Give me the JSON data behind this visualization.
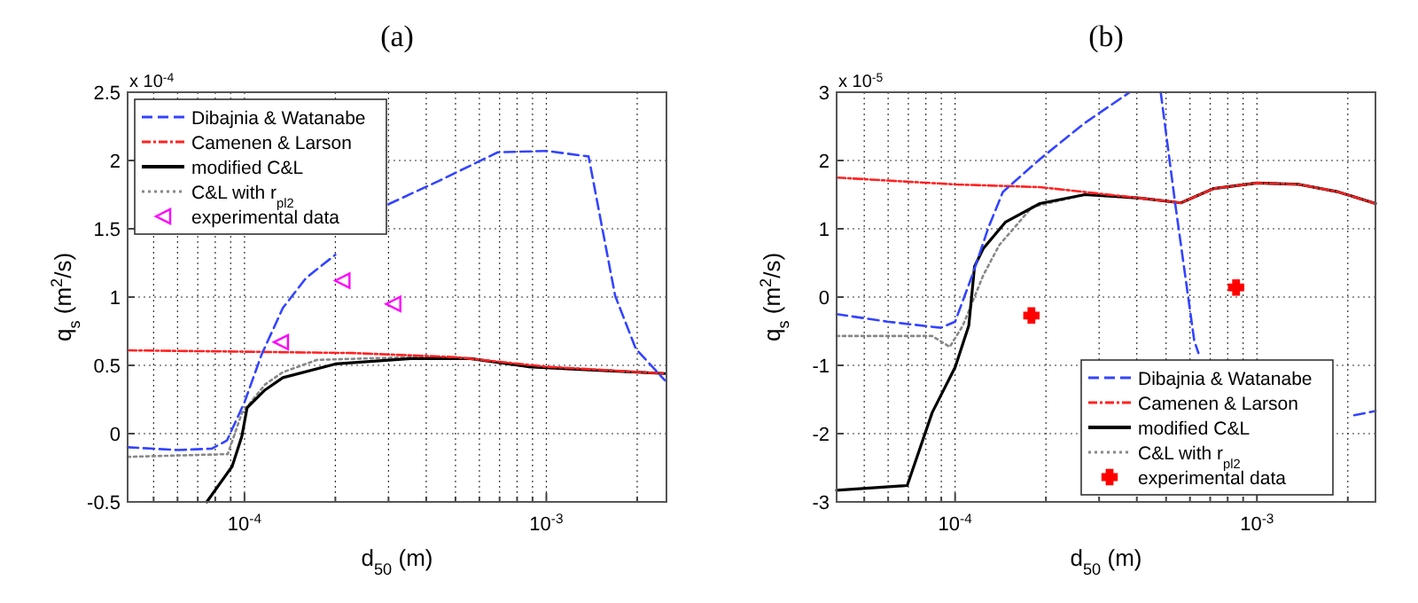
{
  "chart_data": [
    {
      "type": "line",
      "title": "(a)",
      "xlabel": "d$_{50}$ (m)",
      "ylabel": "q$_{s}$ (m$^{2}$/s)",
      "annotations": [
        "x 10$^{-4}$"
      ],
      "log": "x",
      "grid": true,
      "legend": "top left",
      "xlim": [
        4.1e-05,
        0.0025
      ],
      "ylim": [
        -0.5,
        2.5
      ],
      "yticks": [
        -0.5,
        0,
        0.5,
        1,
        1.5,
        2,
        2.5
      ],
      "xticks": [
        {
          "value": 5e-05,
          "label": null
        },
        {
          "value": 6e-05,
          "label": null
        },
        {
          "value": 7e-05,
          "label": null
        },
        {
          "value": 8e-05,
          "label": null
        },
        {
          "value": 9e-05,
          "label": null
        },
        {
          "value": 0.0001,
          "label": "10$^{-4}$"
        },
        {
          "value": 0.0002,
          "label": null
        },
        {
          "value": 0.0003,
          "label": null
        },
        {
          "value": 0.0004,
          "label": null
        },
        {
          "value": 0.0005,
          "label": null
        },
        {
          "value": 0.0006,
          "label": null
        },
        {
          "value": 0.0007,
          "label": null
        },
        {
          "value": 0.0008,
          "label": null
        },
        {
          "value": 0.0009,
          "label": null
        },
        {
          "value": 0.001,
          "label": "10$^{-3}$"
        },
        {
          "value": 0.002,
          "label": null
        }
      ],
      "series": [
        {
          "name": "Dibajnia & Watanabe",
          "color": "#3344ff",
          "line_style": "dashed",
          "x": [
            4.1e-05,
            6e-05,
            7.8e-05,
            8.75e-05,
            0.0001,
            0.000114,
            0.000134,
            0.00016,
            0.0002,
            0.00025,
            0.0003,
            0.00044,
            0.00069,
            0.001,
            0.00138,
            0.00169,
            0.00198,
            0.00247
          ],
          "values": [
            -0.1,
            -0.12,
            -0.11,
            -0.05,
            0.23,
            0.58,
            0.92,
            1.14,
            1.31,
            null,
            1.68,
            1.85,
            2.06,
            2.07,
            2.03,
            1.01,
            0.62,
            0.39
          ]
        },
        {
          "name": "Camenen & Larson",
          "color": "#ff2222",
          "line_style": "dashdot",
          "x": [
            4.1e-05,
            0.0001,
            0.00023,
            0.0005,
            0.001,
            0.00247
          ],
          "values": [
            0.61,
            0.6,
            0.59,
            0.56,
            0.49,
            0.44
          ]
        },
        {
          "name": "modified C&L",
          "color": "#000000",
          "line_style": "solid",
          "x": [
            7.5e-05,
            9.1e-05,
            9.8e-05,
            0.000102,
            0.000117,
            0.000134,
            0.0002,
            0.000355,
            0.00056,
            0.00087,
            0.0013,
            0.00247
          ],
          "values": [
            -0.5,
            -0.24,
            -0.02,
            0.19,
            0.32,
            0.41,
            0.51,
            0.55,
            0.55,
            0.49,
            0.47,
            0.44
          ]
        },
        {
          "name": "C&L with r$_{pl2}$",
          "color": "#888888",
          "line_style": "dotted",
          "x": [
            4.1e-05,
            8.8e-05,
            9.8e-05,
            0.000117,
            0.000134,
            0.000174,
            0.000355,
            0.00056,
            0.00087,
            0.0013,
            0.00247
          ],
          "values": [
            -0.17,
            -0.15,
            0.15,
            0.36,
            0.45,
            0.54,
            0.56,
            0.55,
            0.49,
            0.47,
            0.44
          ]
        },
        {
          "name": "experimental data",
          "type": "scatter",
          "color": "#ff00ff",
          "marker": "triangle",
          "x": [
            0.000132,
            0.000211,
            0.000311
          ],
          "values": [
            0.67,
            1.12,
            0.95
          ]
        }
      ]
    },
    {
      "type": "line",
      "title": "(b)",
      "xlabel": "d$_{50}$ (m)",
      "ylabel": "q$_{s}$ (m$^{2}$/s)",
      "annotations": [
        "x 10$^{-5}$"
      ],
      "log": "x",
      "grid": true,
      "legend": "bottom right",
      "xlim": [
        4.05e-05,
        0.00247
      ],
      "ylim": [
        -3,
        3
      ],
      "yticks": [
        -3,
        -2,
        -1,
        0,
        1,
        2,
        3
      ],
      "xticks": [
        {
          "value": 5e-05,
          "label": null
        },
        {
          "value": 6e-05,
          "label": null
        },
        {
          "value": 7e-05,
          "label": null
        },
        {
          "value": 8e-05,
          "label": null
        },
        {
          "value": 9e-05,
          "label": null
        },
        {
          "value": 0.0001,
          "label": "10$^{-4}$"
        },
        {
          "value": 0.0002,
          "label": null
        },
        {
          "value": 0.0003,
          "label": null
        },
        {
          "value": 0.0004,
          "label": null
        },
        {
          "value": 0.0005,
          "label": null
        },
        {
          "value": 0.0006,
          "label": null
        },
        {
          "value": 0.0007,
          "label": null
        },
        {
          "value": 0.0008,
          "label": null
        },
        {
          "value": 0.0009,
          "label": null
        },
        {
          "value": 0.001,
          "label": "10$^{-3}$"
        },
        {
          "value": 0.002,
          "label": null
        }
      ],
      "series": [
        {
          "name": "Dibajnia & Watanabe",
          "color": "#3344ff",
          "line_style": "dashed",
          "x": [
            4.05e-05,
            5.97e-05,
            8.98e-05,
            0.0001,
            0.000114,
            0.000129,
            0.000144,
            0.000191,
            0.000269,
            0.000379,
            0.00043,
            0.00048,
            0.000536,
            0.00062,
            0.00064,
            0.0015,
            0.0021,
            0.00247
          ],
          "values": [
            -0.25,
            -0.36,
            -0.45,
            -0.36,
            0.32,
            1.02,
            1.54,
            2.02,
            2.55,
            3.0,
            null,
            3.0,
            1.37,
            -0.64,
            -0.82,
            null,
            -1.73,
            -1.67
          ]
        },
        {
          "name": "Camenen & Larson",
          "color": "#ff2222",
          "line_style": "dashdot",
          "x": [
            4.05e-05,
            0.0001,
            0.000191,
            0.00041,
            0.00056,
            0.00072,
            0.001,
            0.00138,
            0.00186,
            0.00247
          ],
          "values": [
            1.75,
            1.65,
            1.61,
            1.45,
            1.38,
            1.59,
            1.67,
            1.65,
            1.54,
            1.37
          ]
        },
        {
          "name": "modified C&L",
          "color": "#000000",
          "line_style": "solid",
          "x": [
            4.05e-05,
            6.94e-05,
            8.4e-05,
            0.0001,
            0.000111,
            0.000116,
            0.000124,
            0.000147,
            0.000191,
            0.000269,
            0.00041,
            0.00056,
            0.00072,
            0.001,
            0.00138,
            0.00186,
            0.00247
          ],
          "values": [
            -2.83,
            -2.76,
            -1.69,
            -1.03,
            -0.42,
            0.45,
            0.71,
            1.1,
            1.37,
            1.5,
            1.45,
            1.38,
            1.59,
            1.67,
            1.65,
            1.54,
            1.37
          ]
        },
        {
          "name": "C&L with r$_{pl2}$",
          "color": "#888888",
          "line_style": "dotted",
          "x": [
            4.05e-05,
            8.4e-05,
            9.6e-05,
            0.000106,
            0.000124,
            0.00014,
            0.00018,
            0.000269,
            0.00041,
            0.00056,
            0.00072,
            0.001,
            0.00138,
            0.00186,
            0.00247
          ],
          "values": [
            -0.57,
            -0.57,
            -0.73,
            -0.42,
            0.32,
            0.76,
            1.32,
            1.5,
            1.45,
            1.38,
            1.59,
            1.67,
            1.65,
            1.54,
            1.37
          ]
        },
        {
          "name": "experimental data",
          "type": "scatter",
          "color": "#ff0000",
          "marker": "cross",
          "x": [
            0.000179,
            0.000853
          ],
          "values": [
            -0.27,
            0.14
          ]
        }
      ]
    }
  ]
}
